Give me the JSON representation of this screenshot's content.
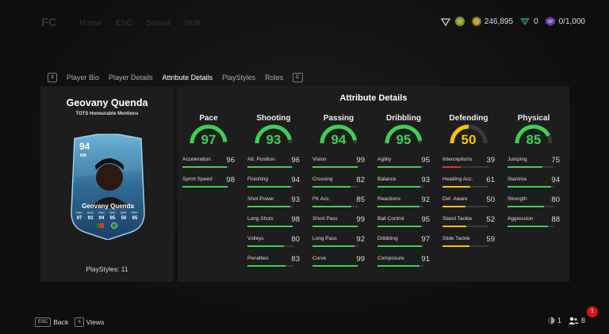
{
  "header": {
    "logo": "FC",
    "nav": [
      "Home",
      "ESC",
      "Squad",
      "Hub"
    ],
    "currencies": {
      "coins": "246,895",
      "points": "0",
      "sp": "0/1,000"
    }
  },
  "tabs": {
    "left_key": "X",
    "right_key": "C",
    "items": [
      "Player Bio",
      "Player Details",
      "Attribute Details",
      "PlayStyles",
      "Roles"
    ],
    "active": "Attribute Details"
  },
  "player": {
    "name": "Geovany Quenda",
    "subtitle": "TOTS Honourable Mentions",
    "playstyles": "PlayStyles: 11",
    "card": {
      "rating": "94",
      "position": "RM",
      "name": "Geovany Quenda",
      "stat_labels": [
        "PAC",
        "SHO",
        "PAS",
        "DRI",
        "DEF",
        "PHY"
      ],
      "stat_values": [
        "97",
        "93",
        "94",
        "95",
        "50",
        "85"
      ]
    }
  },
  "attributes": {
    "title": "Attribute Details",
    "colors": {
      "good": "#3ecf56",
      "mid": "#f5c400",
      "bad": "#e0303a"
    },
    "categories": [
      {
        "name": "Pace",
        "value": 97,
        "value_label": "97",
        "stats": [
          {
            "name": "Acceleration",
            "value": 96,
            "value_label": "96"
          },
          {
            "name": "Sprint Speed",
            "value": 98,
            "value_label": "98"
          }
        ]
      },
      {
        "name": "Shooting",
        "value": 93,
        "value_label": "93",
        "stats": [
          {
            "name": "Att. Position",
            "value": 96,
            "value_label": "96"
          },
          {
            "name": "Finishing",
            "value": 94,
            "value_label": "94"
          },
          {
            "name": "Shot Power",
            "value": 93,
            "value_label": "93"
          },
          {
            "name": "Long Shots",
            "value": 98,
            "value_label": "98"
          },
          {
            "name": "Volleys",
            "value": 80,
            "value_label": "80"
          },
          {
            "name": "Penalties",
            "value": 83,
            "value_label": "83"
          }
        ]
      },
      {
        "name": "Passing",
        "value": 94,
        "value_label": "94",
        "stats": [
          {
            "name": "Vision",
            "value": 99,
            "value_label": "99"
          },
          {
            "name": "Crossing",
            "value": 82,
            "value_label": "82"
          },
          {
            "name": "FK Acc.",
            "value": 85,
            "value_label": "85"
          },
          {
            "name": "Short Pass",
            "value": 99,
            "value_label": "99"
          },
          {
            "name": "Long Pass",
            "value": 92,
            "value_label": "92"
          },
          {
            "name": "Curve",
            "value": 99,
            "value_label": "99"
          }
        ]
      },
      {
        "name": "Dribbling",
        "value": 95,
        "value_label": "95",
        "stats": [
          {
            "name": "Agility",
            "value": 95,
            "value_label": "95"
          },
          {
            "name": "Balance",
            "value": 93,
            "value_label": "93"
          },
          {
            "name": "Reactions",
            "value": 92,
            "value_label": "92"
          },
          {
            "name": "Ball Control",
            "value": 95,
            "value_label": "95"
          },
          {
            "name": "Dribbling",
            "value": 97,
            "value_label": "97"
          },
          {
            "name": "Composure",
            "value": 91,
            "value_label": "91"
          }
        ]
      },
      {
        "name": "Defending",
        "value": 50,
        "value_label": "50",
        "stats": [
          {
            "name": "Interceptions",
            "value": 39,
            "value_label": "39"
          },
          {
            "name": "Heading Acc.",
            "value": 61,
            "value_label": "61"
          },
          {
            "name": "Def. Aware",
            "value": 50,
            "value_label": "50"
          },
          {
            "name": "Stand Tackle",
            "value": 52,
            "value_label": "52"
          },
          {
            "name": "Slide Tackle",
            "value": 59,
            "value_label": "59"
          }
        ]
      },
      {
        "name": "Physical",
        "value": 85,
        "value_label": "85",
        "stats": [
          {
            "name": "Jumping",
            "value": 75,
            "value_label": "75"
          },
          {
            "name": "Stamina",
            "value": 94,
            "value_label": "94"
          },
          {
            "name": "Strength",
            "value": 80,
            "value_label": "80"
          },
          {
            "name": "Aggression",
            "value": 88,
            "value_label": "88"
          }
        ]
      }
    ]
  },
  "footer": {
    "back_key": "ESC",
    "back_label": "Back",
    "views_key": "≡",
    "views_label": "Views",
    "online_count": "1",
    "friends_count": "8",
    "notifications": "1"
  }
}
